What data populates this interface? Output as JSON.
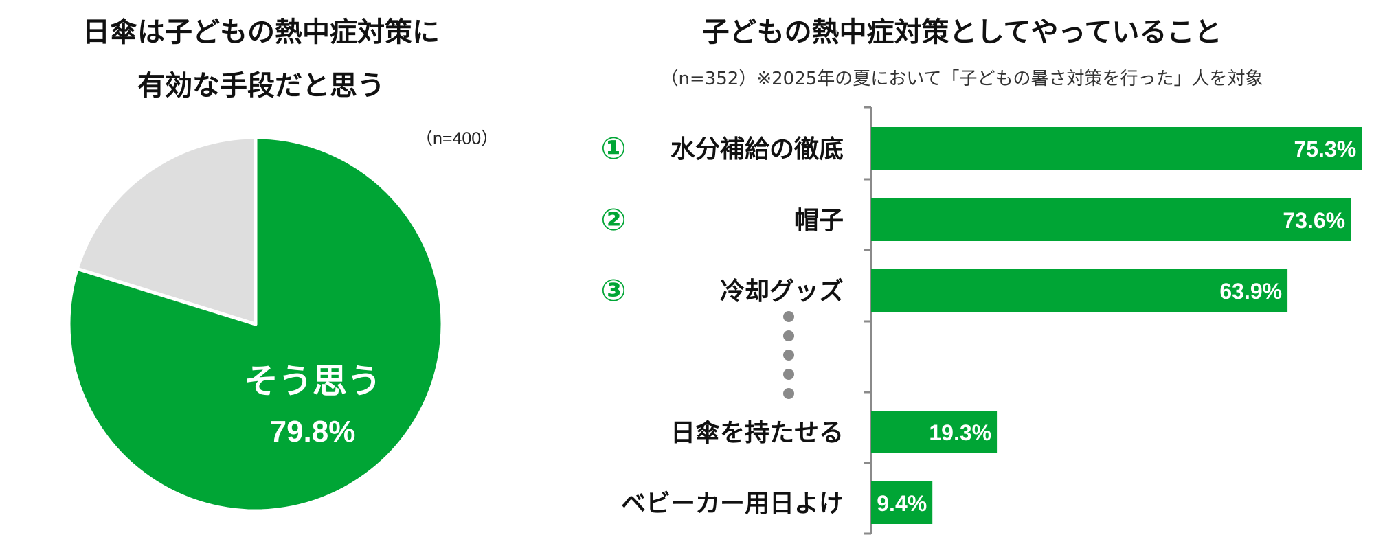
{
  "pie": {
    "title_line1": "日傘は子どもの熱中症対策に",
    "title_line2": "有効な手段だと思う",
    "n_label": "（n=400）",
    "label": "そう思う",
    "value_label": "79.8%"
  },
  "bar": {
    "title": "子どもの熱中症対策としてやっていること",
    "subtitle": "（n=352）※2025年の夏において「子どもの暑さ対策を行った」人を対象",
    "ranks": [
      "①",
      "②",
      "③"
    ]
  },
  "colors": {
    "accent": "#00a535",
    "other": "#dedede",
    "axis": "#8a8a8a"
  },
  "chart_data": [
    {
      "type": "pie",
      "slices": [
        {
          "label": "そう思う",
          "value": 79.8,
          "color": "#00a535"
        },
        {
          "label": "",
          "value": 20.2,
          "color": "#dedede"
        }
      ]
    },
    {
      "type": "bar",
      "orientation": "horizontal",
      "categories": [
        "水分補給の徹底",
        "帽子",
        "冷却グッズ",
        "日傘を持たせる",
        "ベビーカー用日よけ"
      ],
      "values": [
        75.3,
        73.6,
        63.9,
        19.3,
        9.4
      ],
      "value_labels": [
        "75.3%",
        "73.6%",
        "63.9%",
        "19.3%",
        "9.4%"
      ],
      "ellipsis_after_index": 2,
      "grid": false
    }
  ]
}
